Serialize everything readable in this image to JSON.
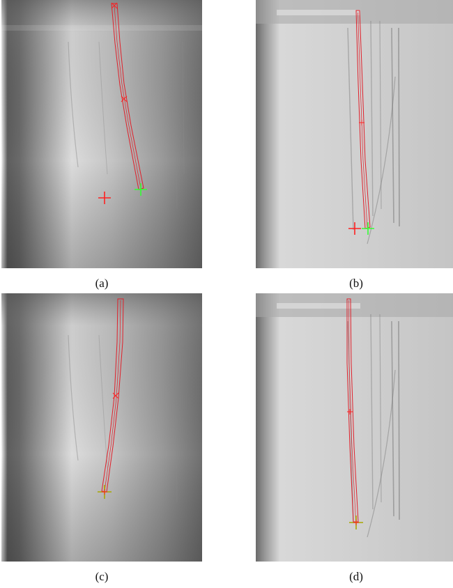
{
  "panels": [
    {
      "id": "a",
      "caption": "(a)"
    },
    {
      "id": "b",
      "caption": "(b)"
    },
    {
      "id": "c",
      "caption": "(c)"
    },
    {
      "id": "d",
      "caption": "(d)"
    }
  ],
  "colors": {
    "trace_outline": "#e0202a",
    "estimate_marker": "#ff2020",
    "tip_marker": "#33ff33",
    "target_marker": "#a8a800"
  }
}
